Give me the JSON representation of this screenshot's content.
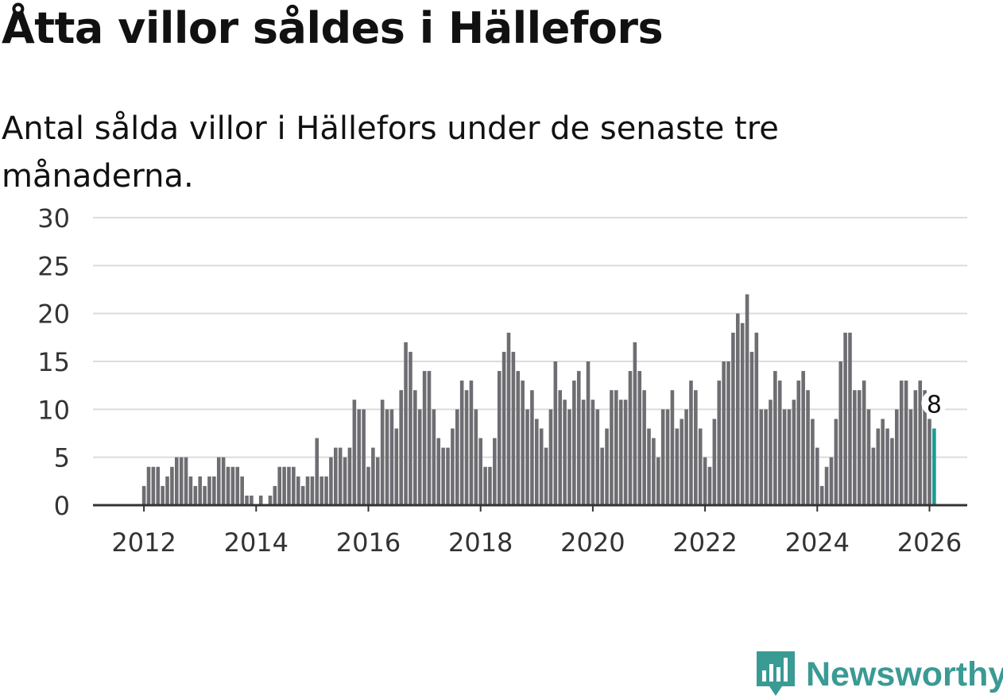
{
  "title": "Åtta villor såldes i Hällefors",
  "subtitle": "Antal sålda villor i Hällefors under de senaste tre månaderna.",
  "brand": {
    "name": "Newsworthy",
    "color": "#3a9a94"
  },
  "colors": {
    "bar": "#6e6d72",
    "highlight": "#1e9a94",
    "grid": "#dcdcdc",
    "axis": "#333333"
  },
  "chart_data": {
    "type": "bar",
    "title": "Åtta villor såldes i Hällefors",
    "xlabel": "",
    "ylabel": "",
    "ylim": [
      0,
      30
    ],
    "yticks": [
      0,
      5,
      10,
      15,
      20,
      25,
      30
    ],
    "xticks": [
      "2012",
      "2014",
      "2016",
      "2018",
      "2020",
      "2022",
      "2024",
      "2026"
    ],
    "start_month": "2011-01",
    "categories_note": "monthly, January 2011 to January 2026",
    "values": [
      0,
      0,
      0,
      0,
      0,
      0,
      0,
      0,
      0,
      0,
      0,
      0,
      2,
      4,
      4,
      4,
      2,
      3,
      4,
      5,
      5,
      5,
      3,
      2,
      3,
      2,
      3,
      3,
      5,
      5,
      4,
      4,
      4,
      3,
      1,
      1,
      0,
      1,
      0,
      1,
      2,
      4,
      4,
      4,
      4,
      3,
      2,
      3,
      3,
      7,
      3,
      3,
      5,
      6,
      6,
      5,
      6,
      11,
      10,
      10,
      4,
      6,
      5,
      11,
      10,
      10,
      8,
      12,
      17,
      16,
      12,
      10,
      14,
      14,
      10,
      7,
      6,
      6,
      8,
      10,
      13,
      12,
      13,
      10,
      7,
      4,
      4,
      7,
      14,
      16,
      18,
      16,
      14,
      13,
      10,
      12,
      9,
      8,
      6,
      10,
      15,
      12,
      11,
      10,
      13,
      14,
      11,
      15,
      11,
      10,
      6,
      8,
      12,
      12,
      11,
      11,
      14,
      17,
      14,
      12,
      8,
      7,
      5,
      10,
      10,
      12,
      8,
      9,
      10,
      13,
      12,
      8,
      5,
      4,
      9,
      13,
      15,
      15,
      18,
      20,
      19,
      22,
      16,
      18,
      10,
      10,
      11,
      14,
      13,
      10,
      10,
      11,
      13,
      14,
      12,
      9,
      6,
      2,
      4,
      5,
      9,
      15,
      18,
      18,
      12,
      12,
      13,
      10,
      6,
      8,
      9,
      8,
      7,
      10,
      13,
      13,
      10,
      12,
      13,
      12,
      9,
      8
    ],
    "highlight": {
      "index": 181,
      "label": "8",
      "value": 8
    }
  }
}
